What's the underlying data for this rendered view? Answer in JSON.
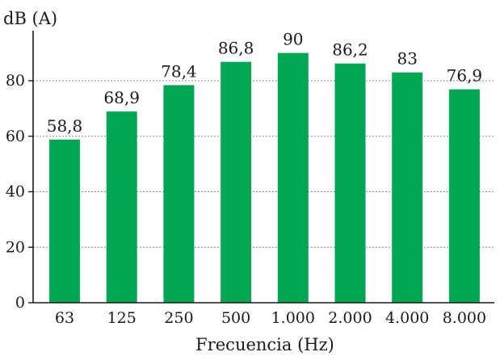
{
  "chart_data": {
    "type": "bar",
    "title": "",
    "ylabel": "dB (A)",
    "xlabel": "Frecuencia (Hz)",
    "categories": [
      "63",
      "125",
      "250",
      "500",
      "1.000",
      "2.000",
      "4.000",
      "8.000"
    ],
    "values": [
      58.8,
      68.9,
      78.4,
      86.8,
      90,
      86.2,
      83,
      76.9
    ],
    "value_labels": [
      "58,8",
      "68,9",
      "78,4",
      "86,8",
      "90",
      "86,2",
      "83",
      "76,9"
    ],
    "ylim": [
      0,
      100
    ],
    "yticks": [
      0,
      20,
      40,
      60,
      80
    ],
    "ytick_labels": [
      "0",
      "20",
      "40",
      "60",
      "80"
    ],
    "grid": true,
    "grid_style": "dotted horizontal",
    "legend": "none",
    "bar_color": "#00a651"
  }
}
